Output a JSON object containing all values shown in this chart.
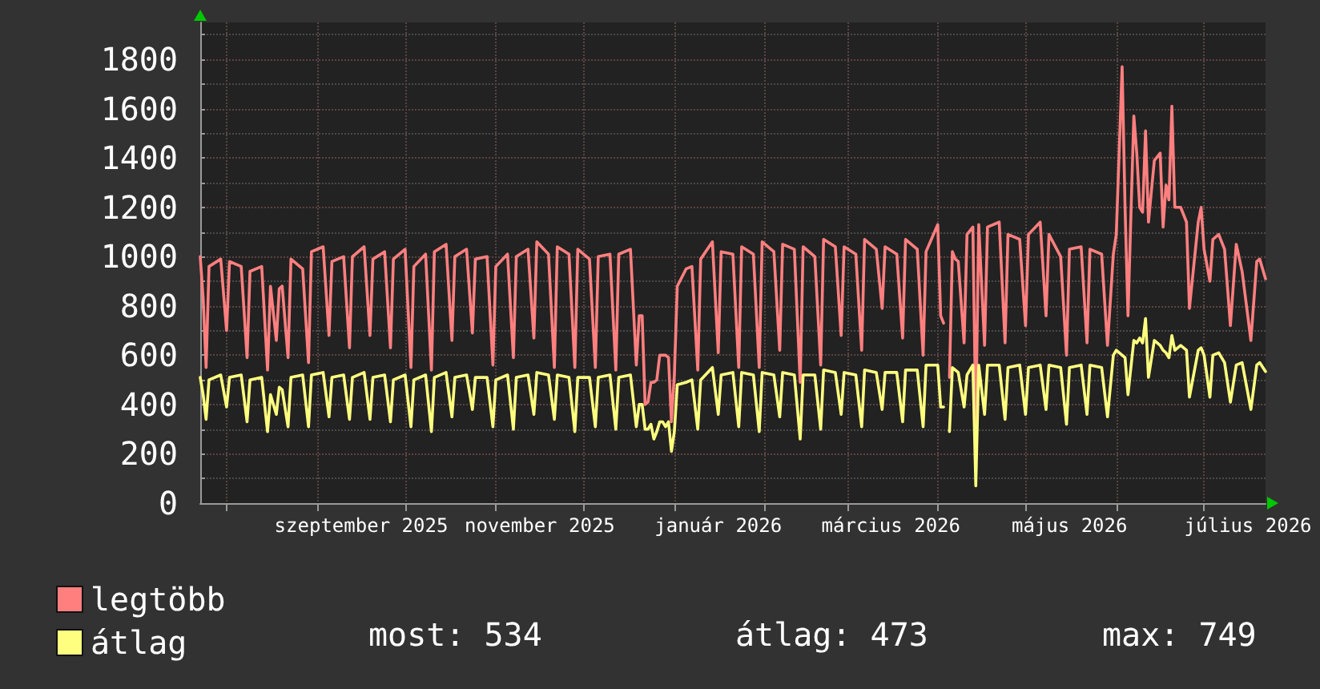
{
  "chart_data": {
    "type": "line",
    "x": [
      "2025-07-23",
      "2025-07-24",
      "2025-07-25",
      "2025-07-26",
      "2025-07-30",
      "2025-08-01",
      "2025-08-02",
      "2025-08-06",
      "2025-08-08",
      "2025-08-09",
      "2025-08-13",
      "2025-08-15",
      "2025-08-16",
      "2025-08-18",
      "2025-08-19",
      "2025-08-20",
      "2025-08-22",
      "2025-08-23",
      "2025-08-27",
      "2025-08-29",
      "2025-08-30",
      "2025-09-03",
      "2025-09-05",
      "2025-09-06",
      "2025-09-10",
      "2025-09-12",
      "2025-09-13",
      "2025-09-17",
      "2025-09-19",
      "2025-09-20",
      "2025-09-24",
      "2025-09-26",
      "2025-09-27",
      "2025-10-01",
      "2025-10-03",
      "2025-10-04",
      "2025-10-08",
      "2025-10-10",
      "2025-10-11",
      "2025-10-15",
      "2025-10-17",
      "2025-10-18",
      "2025-10-22",
      "2025-10-24",
      "2025-10-25",
      "2025-10-29",
      "2025-10-31",
      "2025-11-01",
      "2025-11-05",
      "2025-11-07",
      "2025-11-08",
      "2025-11-12",
      "2025-11-14",
      "2025-11-15",
      "2025-11-19",
      "2025-11-21",
      "2025-11-22",
      "2025-11-26",
      "2025-11-28",
      "2025-11-29",
      "2025-12-03",
      "2025-12-05",
      "2025-12-06",
      "2025-12-10",
      "2025-12-12",
      "2025-12-13",
      "2025-12-17",
      "2025-12-19",
      "2025-12-20",
      "2025-12-21",
      "2025-12-22",
      "2025-12-23",
      "2025-12-24",
      "2025-12-25",
      "2025-12-26",
      "2025-12-27",
      "2025-12-28",
      "2025-12-29",
      "2025-12-30",
      "2025-12-31",
      "2026-01-01",
      "2026-01-02",
      "2026-01-05",
      "2026-01-07",
      "2026-01-09",
      "2026-01-10",
      "2026-01-14",
      "2026-01-16",
      "2026-01-17",
      "2026-01-21",
      "2026-01-23",
      "2026-01-24",
      "2026-01-28",
      "2026-01-30",
      "2026-01-31",
      "2026-02-04",
      "2026-02-06",
      "2026-02-07",
      "2026-02-11",
      "2026-02-13",
      "2026-02-14",
      "2026-02-18",
      "2026-02-20",
      "2026-02-21",
      "2026-02-25",
      "2026-02-27",
      "2026-02-28",
      "2026-03-04",
      "2026-03-06",
      "2026-03-07",
      "2026-03-11",
      "2026-03-13",
      "2026-03-14",
      "2026-03-18",
      "2026-03-20",
      "2026-03-21",
      "2026-03-25",
      "2026-03-27",
      "2026-03-28",
      "2026-04-01",
      "2026-04-02",
      "2026-04-03",
      "2026-04-04",
      "2026-04-05",
      "2026-04-06",
      "2026-04-07",
      "2026-04-08",
      "2026-04-10",
      "2026-04-11",
      "2026-04-13",
      "2026-04-14",
      "2026-04-15",
      "2026-04-17",
      "2026-04-18",
      "2026-04-22",
      "2026-04-24",
      "2026-04-25",
      "2026-04-29",
      "2026-05-01",
      "2026-05-02",
      "2026-05-06",
      "2026-05-08",
      "2026-05-09",
      "2026-05-13",
      "2026-05-15",
      "2026-05-16",
      "2026-05-20",
      "2026-05-22",
      "2026-05-23",
      "2026-05-27",
      "2026-05-29",
      "2026-05-31",
      "2026-06-01",
      "2026-06-03",
      "2026-06-04",
      "2026-06-05",
      "2026-06-07",
      "2026-06-08",
      "2026-06-09",
      "2026-06-10",
      "2026-06-11",
      "2026-06-12",
      "2026-06-14",
      "2026-06-16",
      "2026-06-17",
      "2026-06-18",
      "2026-06-19",
      "2026-06-20",
      "2026-06-21",
      "2026-06-23",
      "2026-06-25",
      "2026-06-26",
      "2026-06-29",
      "2026-06-30",
      "2026-07-01",
      "2026-07-03",
      "2026-07-04",
      "2026-07-06",
      "2026-07-08",
      "2026-07-10",
      "2026-07-12",
      "2026-07-14",
      "2026-07-17",
      "2026-07-19",
      "2026-07-20",
      "2026-07-22"
    ],
    "series": [
      {
        "name": "legtöbb",
        "color": "#ff7f7f",
        "values": [
          1000,
          830,
          550,
          960,
          990,
          700,
          980,
          960,
          590,
          940,
          960,
          540,
          880,
          660,
          870,
          880,
          590,
          990,
          950,
          570,
          1020,
          1040,
          680,
          980,
          1000,
          630,
          1000,
          1040,
          680,
          990,
          1020,
          630,
          990,
          1030,
          550,
          960,
          1010,
          540,
          1020,
          1050,
          660,
          1000,
          1030,
          690,
          990,
          1000,
          560,
          960,
          1010,
          590,
          1000,
          1030,
          670,
          1060,
          1010,
          550,
          1040,
          1010,
          550,
          1030,
          990,
          550,
          1000,
          1010,
          540,
          1010,
          1030,
          560,
          760,
          760,
          400,
          410,
          490,
          490,
          500,
          600,
          600,
          600,
          590,
          330,
          520,
          880,
          950,
          960,
          540,
          990,
          1060,
          610,
          1020,
          1010,
          550,
          1040,
          1010,
          550,
          1060,
          1020,
          620,
          1050,
          1030,
          490,
          1040,
          1000,
          560,
          1070,
          1040,
          680,
          1040,
          1010,
          620,
          1070,
          1030,
          790,
          1040,
          1010,
          670,
          1070,
          1030,
          600,
          1020,
          1130,
          760,
          730,
          null,
          510,
          1020,
          990,
          980,
          650,
          1090,
          1120,
          320,
          1130,
          640,
          1120,
          1140,
          650,
          1090,
          1070,
          720,
          1090,
          1140,
          760,
          1090,
          1000,
          600,
          1030,
          1040,
          650,
          1030,
          1010,
          640,
          1010,
          1090,
          1770,
          1200,
          760,
          1570,
          1420,
          1200,
          1180,
          1510,
          1140,
          1390,
          1420,
          1120,
          1290,
          1230,
          1610,
          1200,
          1200,
          1140,
          790,
          1140,
          1200,
          1030,
          900,
          1070,
          1090,
          1030,
          720,
          1050,
          940,
          660,
          980,
          990,
          910
        ]
      },
      {
        "name": "átlag",
        "color": "#ffff7f",
        "values": [
          510,
          440,
          340,
          500,
          520,
          390,
          510,
          520,
          330,
          500,
          510,
          290,
          440,
          360,
          470,
          460,
          310,
          510,
          520,
          310,
          520,
          530,
          350,
          510,
          520,
          340,
          510,
          530,
          340,
          510,
          520,
          330,
          500,
          520,
          310,
          500,
          520,
          290,
          510,
          530,
          350,
          510,
          520,
          380,
          510,
          510,
          310,
          500,
          520,
          300,
          510,
          520,
          360,
          530,
          520,
          340,
          520,
          510,
          290,
          510,
          510,
          310,
          510,
          520,
          300,
          510,
          520,
          310,
          400,
          400,
          300,
          300,
          320,
          260,
          290,
          330,
          330,
          310,
          330,
          210,
          290,
          480,
          490,
          500,
          300,
          500,
          550,
          360,
          520,
          530,
          310,
          530,
          520,
          290,
          530,
          520,
          350,
          530,
          520,
          260,
          520,
          520,
          300,
          540,
          530,
          360,
          530,
          520,
          310,
          540,
          530,
          380,
          530,
          530,
          330,
          540,
          540,
          310,
          560,
          560,
          390,
          390,
          null,
          290,
          550,
          540,
          530,
          390,
          520,
          560,
          70,
          560,
          360,
          560,
          560,
          340,
          550,
          560,
          360,
          550,
          560,
          380,
          560,
          550,
          320,
          550,
          560,
          360,
          560,
          550,
          350,
          600,
          620,
          600,
          590,
          440,
          660,
          650,
          670,
          650,
          749,
          510,
          660,
          640,
          620,
          610,
          590,
          680,
          620,
          640,
          620,
          430,
          620,
          630,
          600,
          430,
          600,
          610,
          570,
          410,
          560,
          570,
          380,
          560,
          570,
          534
        ]
      }
    ],
    "xlim": [
      "2025-07-23",
      "2026-07-22"
    ],
    "xticks": [
      {
        "value": "2025-08-01",
        "label": null
      },
      {
        "value": "2025-09-01",
        "label": null
      },
      {
        "value": "2025-09-16",
        "label": "szeptember 2025"
      },
      {
        "value": "2025-10-01",
        "label": null
      },
      {
        "value": "2025-11-01",
        "label": null
      },
      {
        "value": "2025-11-16",
        "label": "november 2025"
      },
      {
        "value": "2025-12-01",
        "label": null
      },
      {
        "value": "2026-01-01",
        "label": null
      },
      {
        "value": "2026-01-16",
        "label": "január 2026"
      },
      {
        "value": "2026-02-01",
        "label": null
      },
      {
        "value": "2026-03-01",
        "label": null
      },
      {
        "value": "2026-03-16",
        "label": "március 2026"
      },
      {
        "value": "2026-04-01",
        "label": null
      },
      {
        "value": "2026-05-01",
        "label": null
      },
      {
        "value": "2026-05-16",
        "label": "május 2026"
      },
      {
        "value": "2026-06-01",
        "label": null
      },
      {
        "value": "2026-07-01",
        "label": null
      },
      {
        "value": "2026-07-16",
        "label": "július 2026"
      }
    ],
    "ylim": [
      0,
      1950
    ],
    "yticks": [
      0,
      {
        "value": 100,
        "label": null
      },
      200,
      {
        "value": 300,
        "label": null
      },
      400,
      {
        "value": 500,
        "label": null
      },
      600,
      {
        "value": 700,
        "label": null
      },
      800,
      {
        "value": 900,
        "label": null
      },
      1000,
      {
        "value": 1100,
        "label": null
      },
      1200,
      {
        "value": 1300,
        "label": null
      },
      1400,
      {
        "value": 1500,
        "label": null
      },
      1600,
      {
        "value": 1700,
        "label": null
      },
      1800,
      {
        "value": 1900,
        "label": null
      }
    ],
    "grid": true,
    "legend": "bottom left",
    "marker": "none",
    "line_style": "solid",
    "annotations": [
      "most: 534",
      "átlag: 473",
      "max: 749"
    ]
  }
}
